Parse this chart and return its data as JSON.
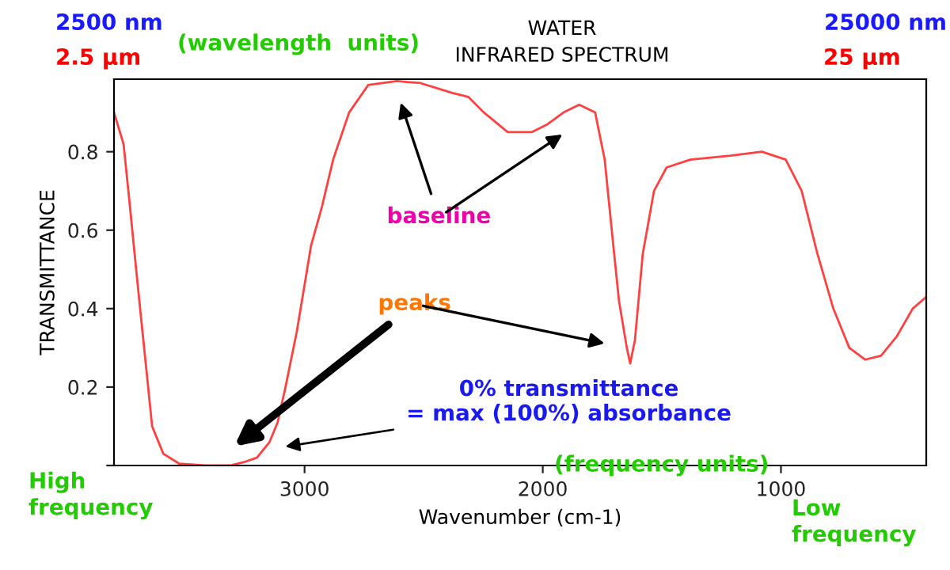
{
  "chart_data": {
    "type": "line",
    "title": "WATER\nINFRARED SPECTRUM",
    "xlabel": "Wavenumber (cm-1)",
    "ylabel": "TRANSMITTANCE",
    "x": [
      3800,
      3760,
      3733,
      3707,
      3687,
      3660,
      3640,
      3593,
      3527,
      3413,
      3313,
      3247,
      3200,
      3147,
      3113,
      3080,
      3033,
      3000,
      2973,
      2927,
      2880,
      2813,
      2733,
      2613,
      2513,
      2380,
      2313,
      2247,
      2147,
      2047,
      1980,
      1913,
      1847,
      1780,
      1740,
      1707,
      1680,
      1647,
      1633,
      1613,
      1580,
      1533,
      1480,
      1380,
      1213,
      1080,
      980,
      913,
      847,
      780,
      713,
      647,
      580,
      513,
      447,
      390
    ],
    "series": [
      {
        "color": "#ff4040",
        "values": [
          0.9,
          0.82,
          0.66,
          0.5,
          0.38,
          0.22,
          0.1,
          0.03,
          0.005,
          0,
          0,
          0.01,
          0.02,
          0.06,
          0.11,
          0.2,
          0.34,
          0.46,
          0.56,
          0.66,
          0.78,
          0.9,
          0.97,
          0.98,
          0.975,
          0.95,
          0.94,
          0.9,
          0.85,
          0.85,
          0.87,
          0.9,
          0.92,
          0.9,
          0.78,
          0.58,
          0.42,
          0.3,
          0.26,
          0.32,
          0.54,
          0.7,
          0.76,
          0.78,
          0.79,
          0.8,
          0.78,
          0.7,
          0.54,
          0.4,
          0.3,
          0.27,
          0.28,
          0.33,
          0.4,
          0.43
        ]
      }
    ],
    "xlim": [
      3800,
      390
    ],
    "ylim": [
      0,
      0.985
    ],
    "xticks": [
      3000,
      2000,
      1000
    ],
    "yticks": [
      {
        "value": 0,
        "label": null
      },
      0.2,
      0.4,
      0.6,
      0.8
    ],
    "grid": false,
    "legend": false,
    "marker": "none",
    "line_style": "solid",
    "annotations": [
      "2500 nm",
      "2.5 µm",
      "(wavelength  units)",
      "25000 nm",
      "25 µm",
      "(frequency units)",
      "High\nfrequency",
      "Low\nfrequency",
      "baseline",
      "peaks",
      "0% transmittance\n= max (100%) absorbance"
    ]
  }
}
